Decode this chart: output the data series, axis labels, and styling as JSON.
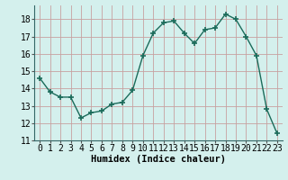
{
  "x": [
    0,
    1,
    2,
    3,
    4,
    5,
    6,
    7,
    8,
    9,
    10,
    11,
    12,
    13,
    14,
    15,
    16,
    17,
    18,
    19,
    20,
    21,
    22,
    23
  ],
  "y": [
    14.6,
    13.8,
    13.5,
    13.5,
    12.3,
    12.6,
    12.7,
    13.1,
    13.2,
    13.9,
    15.9,
    17.2,
    17.8,
    17.9,
    17.2,
    16.6,
    17.4,
    17.5,
    18.3,
    18.0,
    17.0,
    15.9,
    12.8,
    11.4
  ],
  "line_color": "#1a6b5a",
  "marker": "+",
  "markersize": 4,
  "markeredgewidth": 1.2,
  "linewidth": 1.0,
  "xlabel": "Humidex (Indice chaleur)",
  "bg_color": "#d4f0ed",
  "grid_color": "#c8a0a0",
  "xlim": [
    -0.5,
    23.5
  ],
  "ylim": [
    11,
    18.8
  ],
  "yticks": [
    11,
    12,
    13,
    14,
    15,
    16,
    17,
    18
  ],
  "xticks": [
    0,
    1,
    2,
    3,
    4,
    5,
    6,
    7,
    8,
    9,
    10,
    11,
    12,
    13,
    14,
    15,
    16,
    17,
    18,
    19,
    20,
    21,
    22,
    23
  ],
  "xlabel_fontsize": 7.5,
  "tick_fontsize": 7.0
}
